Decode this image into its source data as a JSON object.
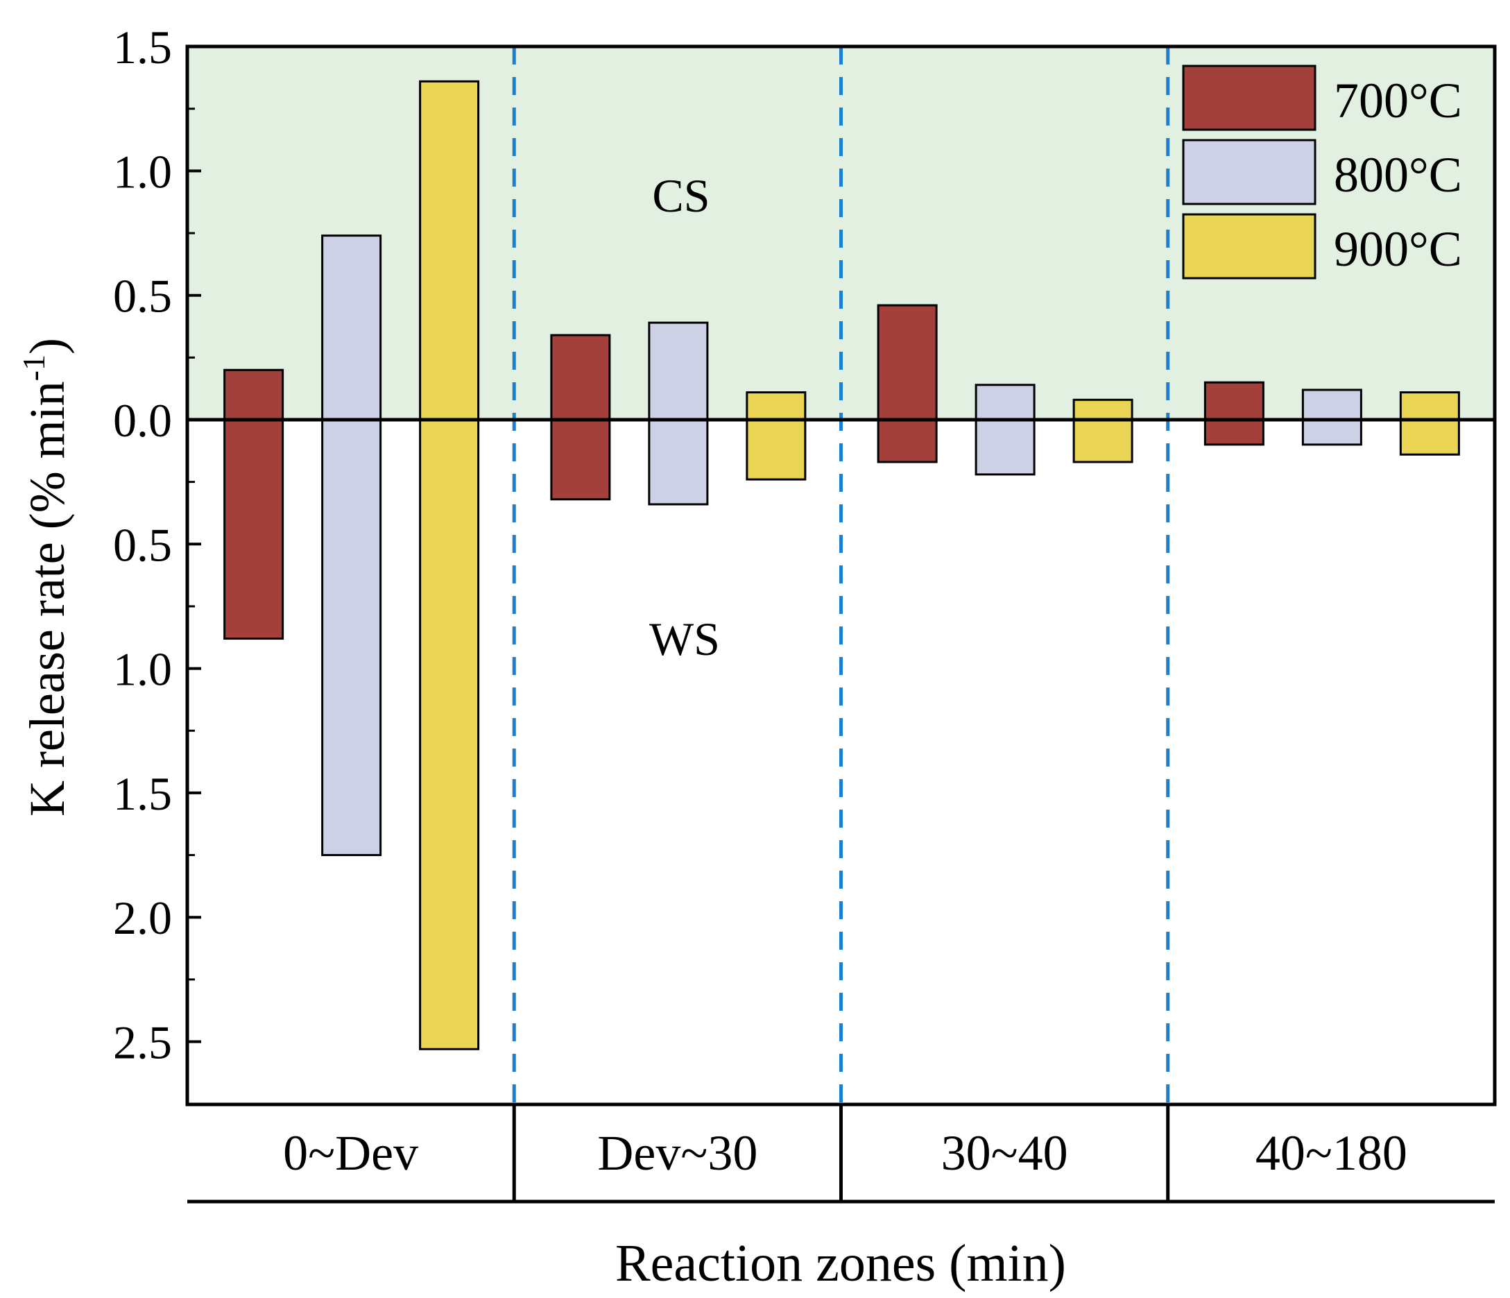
{
  "chart_data": {
    "type": "bar",
    "subtype": "mirrored (positive = CS, negative = WS)",
    "xlabel": "Reaction zones (min)",
    "ylabel_main": "K release rate (% min",
    "ylabel_sup": "-1",
    "ylabel_close": ")",
    "y_tick_labels": [
      "1.5",
      "1.0",
      "0.5",
      "0.0",
      "0.5",
      "1.0",
      "1.5",
      "2.0",
      "2.5"
    ],
    "y_tick_values": [
      1.5,
      1.0,
      0.5,
      0.0,
      -0.5,
      -1.0,
      -1.5,
      -2.0,
      -2.5
    ],
    "ylim": [
      -2.75,
      1.5
    ],
    "region_top_label": "CS",
    "region_bottom_label": "WS",
    "categories": [
      "0~Dev",
      "Dev~30",
      "30~40",
      "40~180"
    ],
    "series": [
      {
        "name": "700°C",
        "color": "#A4403C",
        "cs": [
          0.2,
          0.34,
          0.46,
          0.15
        ],
        "ws": [
          0.88,
          0.32,
          0.17,
          0.1
        ]
      },
      {
        "name": "800°C",
        "color": "#CDD1E6",
        "cs": [
          0.74,
          0.39,
          0.14,
          0.12
        ],
        "ws": [
          1.75,
          0.34,
          0.22,
          0.1
        ]
      },
      {
        "name": "900°C",
        "color": "#E9D454",
        "cs": [
          1.36,
          0.11,
          0.08,
          0.11
        ],
        "ws": [
          2.53,
          0.24,
          0.17,
          0.14
        ]
      }
    ],
    "colors": {
      "cs_background": "#E1F0E1",
      "separator": "#1A7FD1"
    }
  }
}
